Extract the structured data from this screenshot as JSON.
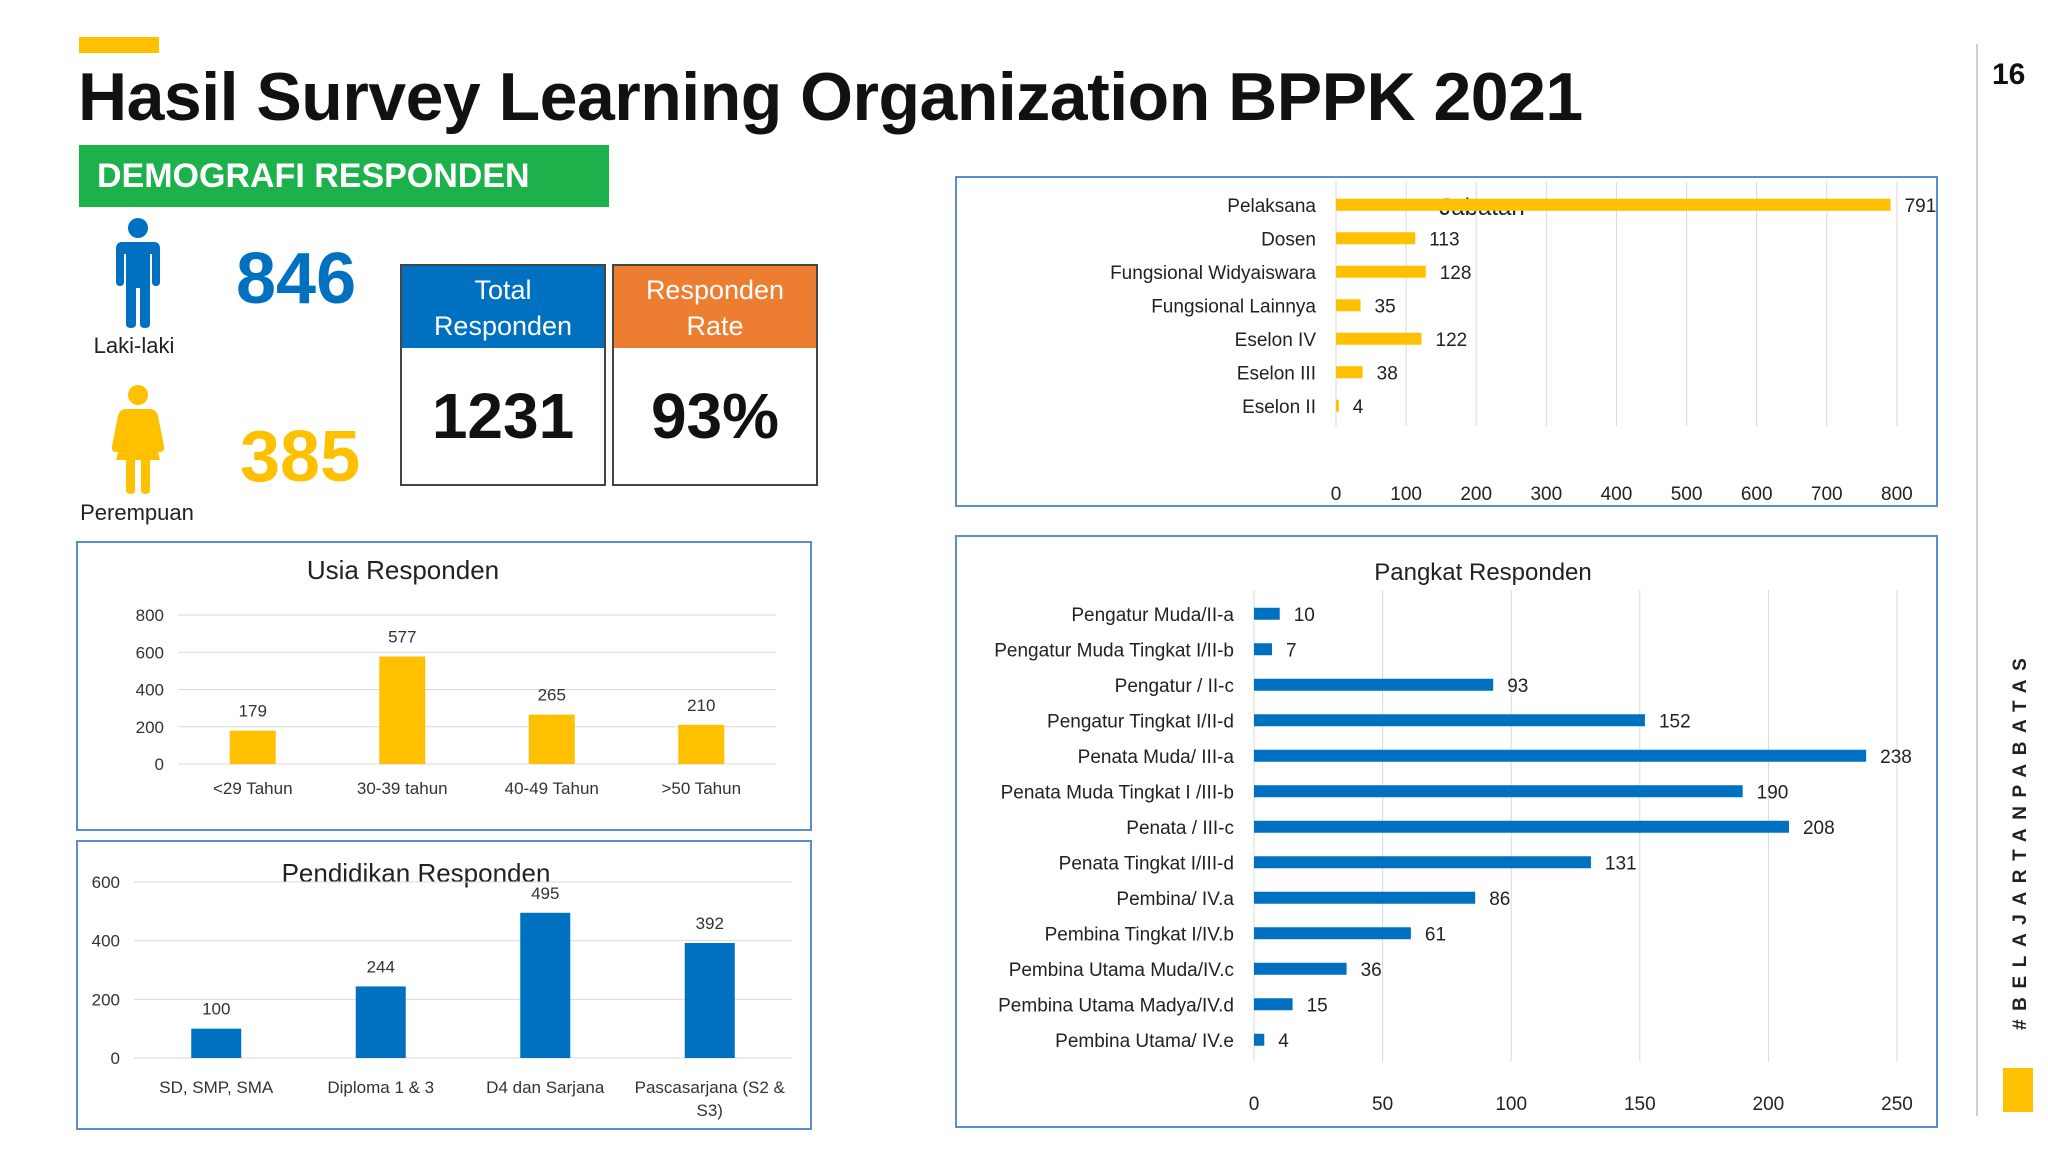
{
  "header": {
    "title": "Hasil Survey Learning Organization BPPK 2021",
    "slide_number": "16",
    "side_tag": "#BELAJARTANPABATAS"
  },
  "demographics": {
    "banner": "DEMOGRAFI RESPONDEN",
    "male": {
      "count": "846",
      "label": "Laki-laki",
      "color": "#0070C0",
      "icon": "male-person-icon"
    },
    "female": {
      "count": "385",
      "label": "Perempuan",
      "color": "#FFC000",
      "icon": "female-person-icon"
    },
    "total": {
      "header": "Total Responden",
      "value": "1231",
      "color": "#0070C0"
    },
    "rate": {
      "header": "Responden Rate",
      "value": "93%",
      "color": "#ED7D31"
    }
  },
  "colors": {
    "yellow": "#FFC000",
    "blue": "#0070C0",
    "green": "#1DB14B",
    "orange": "#ED7D31"
  },
  "chart_data": [
    {
      "id": "usia",
      "type": "bar",
      "title": "Usia Responden",
      "categories": [
        "<29 Tahun",
        "30-39 tahun",
        "40-49 Tahun",
        ">50 Tahun"
      ],
      "values": [
        179,
        577,
        265,
        210
      ],
      "ylim": [
        0,
        800
      ],
      "yticks": [
        0,
        200,
        400,
        600,
        800
      ],
      "color": "#FFC000",
      "grid": true
    },
    {
      "id": "pendidikan",
      "type": "bar",
      "title": "Pendidikan Responden",
      "categories": [
        "SD, SMP, SMA",
        "Diploma 1 & 3",
        "D4 dan Sarjana",
        "Pascasarjana (S2 & S3)"
      ],
      "values": [
        100,
        244,
        495,
        392
      ],
      "ylim": [
        0,
        600
      ],
      "yticks": [
        0,
        200,
        400,
        600
      ],
      "color": "#0070C0",
      "grid": true
    },
    {
      "id": "jabatan",
      "type": "bar",
      "orientation": "horizontal",
      "title": "Jabatan",
      "categories": [
        "Pelaksana",
        "Dosen",
        "Fungsional Widyaiswara",
        "Fungsional Lainnya",
        "Eselon IV",
        "Eselon III",
        "Eselon II"
      ],
      "values": [
        791,
        113,
        128,
        35,
        122,
        38,
        4
      ],
      "xlim": [
        0,
        900
      ],
      "xticks": [
        0,
        100,
        200,
        300,
        400,
        500,
        600,
        700,
        800,
        900
      ],
      "color": "#FFC000",
      "grid": true
    },
    {
      "id": "pangkat",
      "type": "bar",
      "orientation": "horizontal",
      "title": "Pangkat Responden",
      "categories": [
        "Pengatur Muda/II-a",
        "Pengatur Muda Tingkat I/II-b",
        "Pengatur / II-c",
        "Pengatur Tingkat I/II-d",
        "Penata Muda/ III-a",
        "Penata Muda Tingkat I /III-b",
        "Penata / III-c",
        "Penata Tingkat I/III-d",
        "Pembina/ IV.a",
        "Pembina Tingkat I/IV.b",
        "Pembina Utama Muda/IV.c",
        "Pembina Utama Madya/IV.d",
        "Pembina Utama/ IV.e"
      ],
      "values": [
        10,
        7,
        93,
        152,
        238,
        190,
        208,
        131,
        86,
        61,
        36,
        15,
        4
      ],
      "xlim": [
        0,
        250
      ],
      "xticks": [
        0,
        50,
        100,
        150,
        200,
        250
      ],
      "color": "#0070C0",
      "grid": true
    }
  ]
}
